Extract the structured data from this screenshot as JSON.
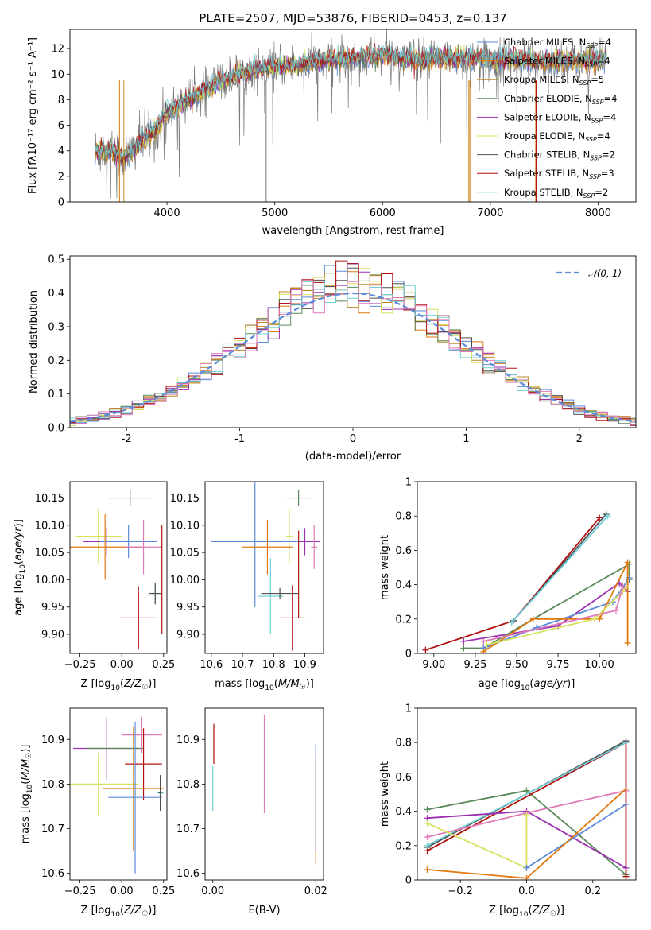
{
  "colors": {
    "Chabrier MILES": "#5b8bd8",
    "Salpeter MILES": "#e07a10",
    "Kroupa MILES": "#c08a28",
    "Chabrier ELODIE": "#5a8a5a",
    "Salpeter ELODIE": "#9a30b0",
    "Kroupa ELODIE": "#d8e060",
    "Chabrier STELIB": "#505050",
    "Salpeter STELIB": "#b01010",
    "Kroupa STELIB": "#70d0d8",
    "extra_pink": "#e07ab8",
    "normal": "#5b8bd8"
  },
  "chart_data": [
    {
      "id": "spectrum",
      "type": "line",
      "title": "PLATE=2507, MJD=53876, FIBERID=0453, z=0.137",
      "xlabel": "wavelength [Angstrom, rest frame]",
      "ylabel": "Flux [fλ10⁻¹⁷ erg cm⁻² s⁻¹ A⁻¹]",
      "xlim": [
        3100,
        8350
      ],
      "ylim": [
        0,
        13.5
      ],
      "xticks": [
        4000,
        5000,
        6000,
        7000,
        8000
      ],
      "yticks": [
        0,
        2,
        4,
        6,
        8,
        10,
        12
      ],
      "legend_position": "top-right",
      "legend": [
        {
          "label": "Chabrier MILES, N",
          "sub": "SSP",
          "tail": "=4",
          "color": "#5b8bd8"
        },
        {
          "label": "Salpeter MILES, N",
          "sub": "SSP",
          "tail": "=4",
          "color": "#e07a10"
        },
        {
          "label": "Kroupa MILES, N",
          "sub": "SSP",
          "tail": "=5",
          "color": "#c08a28"
        },
        {
          "label": "Chabrier ELODIE, N",
          "sub": "SSP",
          "tail": "=4",
          "color": "#5a8a5a"
        },
        {
          "label": "Salpeter ELODIE, N",
          "sub": "SSP",
          "tail": "=4",
          "color": "#9a30b0"
        },
        {
          "label": "Kroupa ELODIE, N",
          "sub": "SSP",
          "tail": "=4",
          "color": "#d8e060"
        },
        {
          "label": "Chabrier STELIB, N",
          "sub": "SSP",
          "tail": "=2",
          "color": "#505050"
        },
        {
          "label": "Salpeter STELIB, N",
          "sub": "SSP",
          "tail": "=3",
          "color": "#b01010"
        },
        {
          "label": "Kroupa STELIB, N",
          "sub": "SSP",
          "tail": "=2",
          "color": "#70d0d8"
        }
      ],
      "continuum": {
        "x": [
          3330,
          3500,
          3600,
          3700,
          3800,
          3900,
          4000,
          4200,
          4400,
          4600,
          4800,
          5000,
          5200,
          5400,
          5600,
          5800,
          6000,
          6200,
          6400,
          6600,
          6800,
          7000,
          7200,
          7400,
          7600,
          7800,
          8000,
          8080
        ],
        "y": [
          4.0,
          4.0,
          3.4,
          4.2,
          5.0,
          5.6,
          7.0,
          8.0,
          9.0,
          9.8,
          10.3,
          10.6,
          10.7,
          11.0,
          11.2,
          11.3,
          11.5,
          11.2,
          11.1,
          11.2,
          11.3,
          11.1,
          11.2,
          11.0,
          11.0,
          11.1,
          11.0,
          11.2
        ]
      }
    },
    {
      "id": "residuals",
      "type": "bar",
      "xlabel": "(data-model)/error",
      "ylabel": "Normed distribution",
      "xlim": [
        -2.5,
        2.5
      ],
      "ylim": [
        0,
        0.51
      ],
      "xticks": [
        -2,
        -1,
        0,
        1,
        2
      ],
      "yticks": [
        0.0,
        0.1,
        0.2,
        0.3,
        0.4,
        0.5
      ],
      "bin_width": 0.1,
      "legend_position": "top-right",
      "legend": [
        {
          "label": "𝒩(0, 1)",
          "color": "#5b8bd8",
          "style": "dashed"
        }
      ]
    },
    {
      "id": "age_vs_Z",
      "type": "scatter",
      "xlabel": "Z [log₁₀(Z/Z☉)]",
      "ylabel": "age  [log₁₀(age/yr)]",
      "xlim": [
        -0.31,
        0.27
      ],
      "ylim": [
        9.865,
        10.18
      ],
      "xticks": [
        -0.25,
        0.0,
        0.25
      ],
      "xticklabels": [
        "−0.25",
        "0.00",
        "0.25"
      ],
      "yticks": [
        9.9,
        9.95,
        10.0,
        10.05,
        10.1,
        10.15
      ],
      "yticklabels": [
        "9.90",
        "9.95",
        "10.00",
        "10.05",
        "10.10",
        "10.15"
      ],
      "points": [
        {
          "series": "Chabrier ELODIE",
          "x": 0.05,
          "xerr": 0.13,
          "y": 10.15,
          "yerr": 0.015
        },
        {
          "series": "Kroupa ELODIE",
          "x": -0.14,
          "xerr": 0.14,
          "y": 10.08,
          "yerr": 0.05
        },
        {
          "series": "Salpeter ELODIE",
          "x": -0.09,
          "xerr": 0.14,
          "y": 10.07,
          "yerr": 0.025
        },
        {
          "series": "Chabrier MILES",
          "x": 0.04,
          "xerr": 0.17,
          "y": 10.07,
          "yerr": 0.03
        },
        {
          "series": "Salpeter MILES",
          "x": -0.1,
          "xerr": 0.22,
          "y": 10.06,
          "yerr": 0.06
        },
        {
          "series": "extra_pink",
          "x": 0.13,
          "xerr": 0.11,
          "y": 10.06,
          "yerr": 0.05
        },
        {
          "series": "Kroupa STELIB",
          "x": 0.2,
          "xerr": 0.04,
          "y": 9.975,
          "yerr": 0.02
        },
        {
          "series": "Chabrier STELIB",
          "x": 0.2,
          "xerr": 0.04,
          "y": 9.975,
          "yerr": 0.02
        },
        {
          "series": "Salpeter STELIB",
          "x": 0.1,
          "xerr": 0.11,
          "y": 9.93,
          "yerr": 0.058
        },
        {
          "series": "Salpeter STELIB",
          "x": 0.24,
          "xerr": 0.0,
          "y": 10.0,
          "yerr": 0.1
        }
      ]
    },
    {
      "id": "age_vs_mass",
      "type": "scatter",
      "xlabel": "mass [log₁₀(M/M☉)]",
      "ylabel": "",
      "xlim": [
        10.58,
        10.96
      ],
      "ylim": [
        9.865,
        10.18
      ],
      "xticks": [
        10.6,
        10.7,
        10.8,
        10.9
      ],
      "yticks": [
        9.9,
        9.95,
        10.0,
        10.05,
        10.1,
        10.15
      ],
      "yticklabels": [
        "9.90",
        "9.95",
        "10.00",
        "10.05",
        "10.10",
        "10.15"
      ],
      "points": [
        {
          "series": "Chabrier ELODIE",
          "x": 10.88,
          "xerr": 0.04,
          "y": 10.15,
          "yerr": 0.015
        },
        {
          "series": "Kroupa ELODIE",
          "x": 10.85,
          "xerr": 0.01,
          "y": 10.08,
          "yerr": 0.05
        },
        {
          "series": "Salpeter ELODIE",
          "x": 10.9,
          "xerr": 0.05,
          "y": 10.07,
          "yerr": 0.025
        },
        {
          "series": "Chabrier MILES",
          "x": 10.74,
          "xerr": 0.14,
          "y": 10.07,
          "yerr": 0.12
        },
        {
          "series": "Salpeter MILES",
          "x": 10.78,
          "xerr": 0.08,
          "y": 10.06,
          "yerr": 0.05
        },
        {
          "series": "extra_pink",
          "x": 10.93,
          "xerr": 0.01,
          "y": 10.06,
          "yerr": 0.04
        },
        {
          "series": "Kroupa STELIB",
          "x": 10.79,
          "xerr": 0.04,
          "y": 9.97,
          "yerr": 0.07
        },
        {
          "series": "Chabrier STELIB",
          "x": 10.82,
          "xerr": 0.06,
          "y": 9.975,
          "yerr": 0.01
        },
        {
          "series": "Salpeter STELIB",
          "x": 10.86,
          "xerr": 0.04,
          "y": 9.93,
          "yerr": 0.06
        },
        {
          "series": "Salpeter STELIB",
          "x": 10.88,
          "xerr": 0.0,
          "y": 10.01,
          "yerr": 0.08
        }
      ]
    },
    {
      "id": "weight_vs_age",
      "type": "line",
      "xlabel": "age  [log₁₀(age/yr)]",
      "ylabel": "mass weight",
      "xlim": [
        8.9,
        10.22
      ],
      "ylim": [
        0,
        1.0
      ],
      "xticks": [
        9.0,
        9.25,
        9.5,
        9.75,
        10.0
      ],
      "xticklabels": [
        "9.00",
        "9.25",
        "9.50",
        "9.75",
        "10.00"
      ],
      "yticks": [
        0.0,
        0.2,
        0.4,
        0.6,
        0.8,
        1.0
      ],
      "series": [
        {
          "name": "Salpeter STELIB",
          "x": [
            8.95,
            9.48,
            10.0
          ],
          "y": [
            0.02,
            0.19,
            0.79
          ]
        },
        {
          "name": "Chabrier STELIB",
          "x": [
            9.48,
            10.04
          ],
          "y": [
            0.19,
            0.81
          ]
        },
        {
          "name": "Kroupa STELIB",
          "x": [
            9.47,
            10.05
          ],
          "y": [
            0.18,
            0.8
          ]
        },
        {
          "name": "Salpeter ELODIE",
          "x": [
            9.18,
            9.75,
            10.12,
            10.17
          ],
          "y": [
            0.07,
            0.16,
            0.41,
            0.36
          ]
        },
        {
          "name": "Chabrier ELODIE",
          "x": [
            9.18,
            9.3,
            9.6,
            10.18,
            10.18
          ],
          "y": [
            0.03,
            0.03,
            0.2,
            0.52,
            0.43
          ]
        },
        {
          "name": "Chabrier MILES",
          "x": [
            9.3,
            9.62,
            10.08,
            10.18
          ],
          "y": [
            0.03,
            0.15,
            0.3,
            0.44
          ]
        },
        {
          "name": "Salpeter MILES",
          "x": [
            9.3,
            9.6,
            10.0,
            10.17,
            10.17
          ],
          "y": [
            0.01,
            0.2,
            0.2,
            0.53,
            0.06
          ]
        },
        {
          "name": "Kroupa ELODIE",
          "x": [
            9.32,
            9.97,
            10.14,
            10.16
          ],
          "y": [
            0.05,
            0.2,
            0.36,
            0.39
          ]
        },
        {
          "name": "extra_pink",
          "x": [
            9.3,
            10.1,
            10.14
          ],
          "y": [
            0.07,
            0.25,
            0.39
          ]
        }
      ]
    },
    {
      "id": "mass_vs_Z",
      "type": "scatter",
      "xlabel": "Z [log₁₀(Z/Z☉)]",
      "ylabel": "mass [log₁₀(M/M☉)]",
      "xlim": [
        -0.31,
        0.27
      ],
      "ylim": [
        10.585,
        10.97
      ],
      "xticks": [
        -0.25,
        0.0,
        0.25
      ],
      "xticklabels": [
        "−0.25",
        "0.00",
        "0.25"
      ],
      "yticks": [
        10.6,
        10.7,
        10.8,
        10.9
      ],
      "points": [
        {
          "series": "Salpeter ELODIE",
          "x": -0.09,
          "xerr": 0.2,
          "y": 10.88,
          "yerr": 0.07
        },
        {
          "series": "Chabrier ELODIE",
          "x": -0.04,
          "xerr": 0.17,
          "y": 10.88,
          "yerr": 0.0
        },
        {
          "series": "extra_pink",
          "x": 0.12,
          "xerr": 0.12,
          "y": 10.91,
          "yerr": 0.04
        },
        {
          "series": "Salpeter STELIB",
          "x": 0.13,
          "xerr": 0.11,
          "y": 10.845,
          "yerr": 0.08
        },
        {
          "series": "Kroupa ELODIE",
          "x": -0.14,
          "xerr": 0.24,
          "y": 10.8,
          "yerr": 0.07
        },
        {
          "series": "Salpeter MILES",
          "x": 0.07,
          "xerr": 0.18,
          "y": 10.79,
          "yerr": 0.14
        },
        {
          "series": "Chabrier MILES",
          "x": 0.08,
          "xerr": 0.16,
          "y": 10.77,
          "yerr": 0.17
        },
        {
          "series": "Kroupa STELIB",
          "x": 0.23,
          "xerr": 0.02,
          "y": 10.78,
          "yerr": 0.04
        },
        {
          "series": "Chabrier STELIB",
          "x": 0.23,
          "xerr": 0.01,
          "y": 10.78,
          "yerr": 0.04
        }
      ]
    },
    {
      "id": "mass_vs_ebv",
      "type": "scatter",
      "xlabel": "E(B-V)",
      "ylabel": "",
      "xlim": [
        -0.0015,
        0.0215
      ],
      "ylim": [
        10.585,
        10.97
      ],
      "xticks": [
        0.0,
        0.02
      ],
      "xticklabels": [
        "0.00",
        "0.02"
      ],
      "yticks": [
        10.6,
        10.7,
        10.8,
        10.9
      ],
      "points": [
        {
          "series": "Salpeter STELIB",
          "x": 0.0002,
          "xerr": 0,
          "y": 10.89,
          "yerr": 0.045
        },
        {
          "series": "Kroupa STELIB",
          "x": 0.0,
          "xerr": 0,
          "y": 10.79,
          "yerr": 0.05
        },
        {
          "series": "extra_pink",
          "x": 0.01,
          "xerr": 0,
          "y": 10.845,
          "yerr": 0.11
        },
        {
          "series": "Salpeter MILES",
          "x": 0.02,
          "xerr": 0,
          "y": 10.74,
          "yerr": 0.12
        },
        {
          "series": "Chabrier MILES",
          "x": 0.02,
          "xerr": 0,
          "y": 10.77,
          "yerr": 0.12
        }
      ]
    },
    {
      "id": "weight_vs_Z",
      "type": "line",
      "xlabel": "Z [log₁₀(Z/Z☉)]",
      "ylabel": "mass weight",
      "xlim": [
        -0.33,
        0.33
      ],
      "ylim": [
        0,
        1.0
      ],
      "xticks": [
        -0.2,
        0.0,
        0.2
      ],
      "xticklabels": [
        "−0.2",
        "0.0",
        "0.2"
      ],
      "yticks": [
        0.0,
        0.2,
        0.4,
        0.6,
        0.8,
        1.0
      ],
      "series": [
        {
          "name": "Chabrier ELODIE",
          "x": [
            -0.3,
            0.0,
            0.3
          ],
          "y": [
            0.41,
            0.52,
            0.03
          ]
        },
        {
          "name": "Chabrier STELIB",
          "x": [
            -0.3,
            0.3
          ],
          "y": [
            0.19,
            0.81
          ]
        },
        {
          "name": "Salpeter STELIB",
          "x": [
            -0.3,
            0.3,
            0.3
          ],
          "y": [
            0.17,
            0.8,
            0.02
          ]
        },
        {
          "name": "Kroupa STELIB",
          "x": [
            -0.3,
            0.3
          ],
          "y": [
            0.2,
            0.8
          ]
        },
        {
          "name": "Salpeter ELODIE",
          "x": [
            -0.3,
            0.0,
            0.3
          ],
          "y": [
            0.36,
            0.4,
            0.07
          ]
        },
        {
          "name": "extra_pink",
          "x": [
            -0.3,
            0.0,
            0.3
          ],
          "y": [
            0.25,
            0.39,
            0.52
          ]
        },
        {
          "name": "Kroupa ELODIE",
          "x": [
            -0.3,
            0.0,
            0.0
          ],
          "y": [
            0.33,
            0.07,
            0.38
          ]
        },
        {
          "name": "Chabrier MILES",
          "x": [
            0.0,
            0.3
          ],
          "y": [
            0.07,
            0.44
          ]
        },
        {
          "name": "Salpeter MILES",
          "x": [
            -0.3,
            0.0,
            0.3
          ],
          "y": [
            0.06,
            0.01,
            0.53
          ]
        }
      ]
    }
  ]
}
